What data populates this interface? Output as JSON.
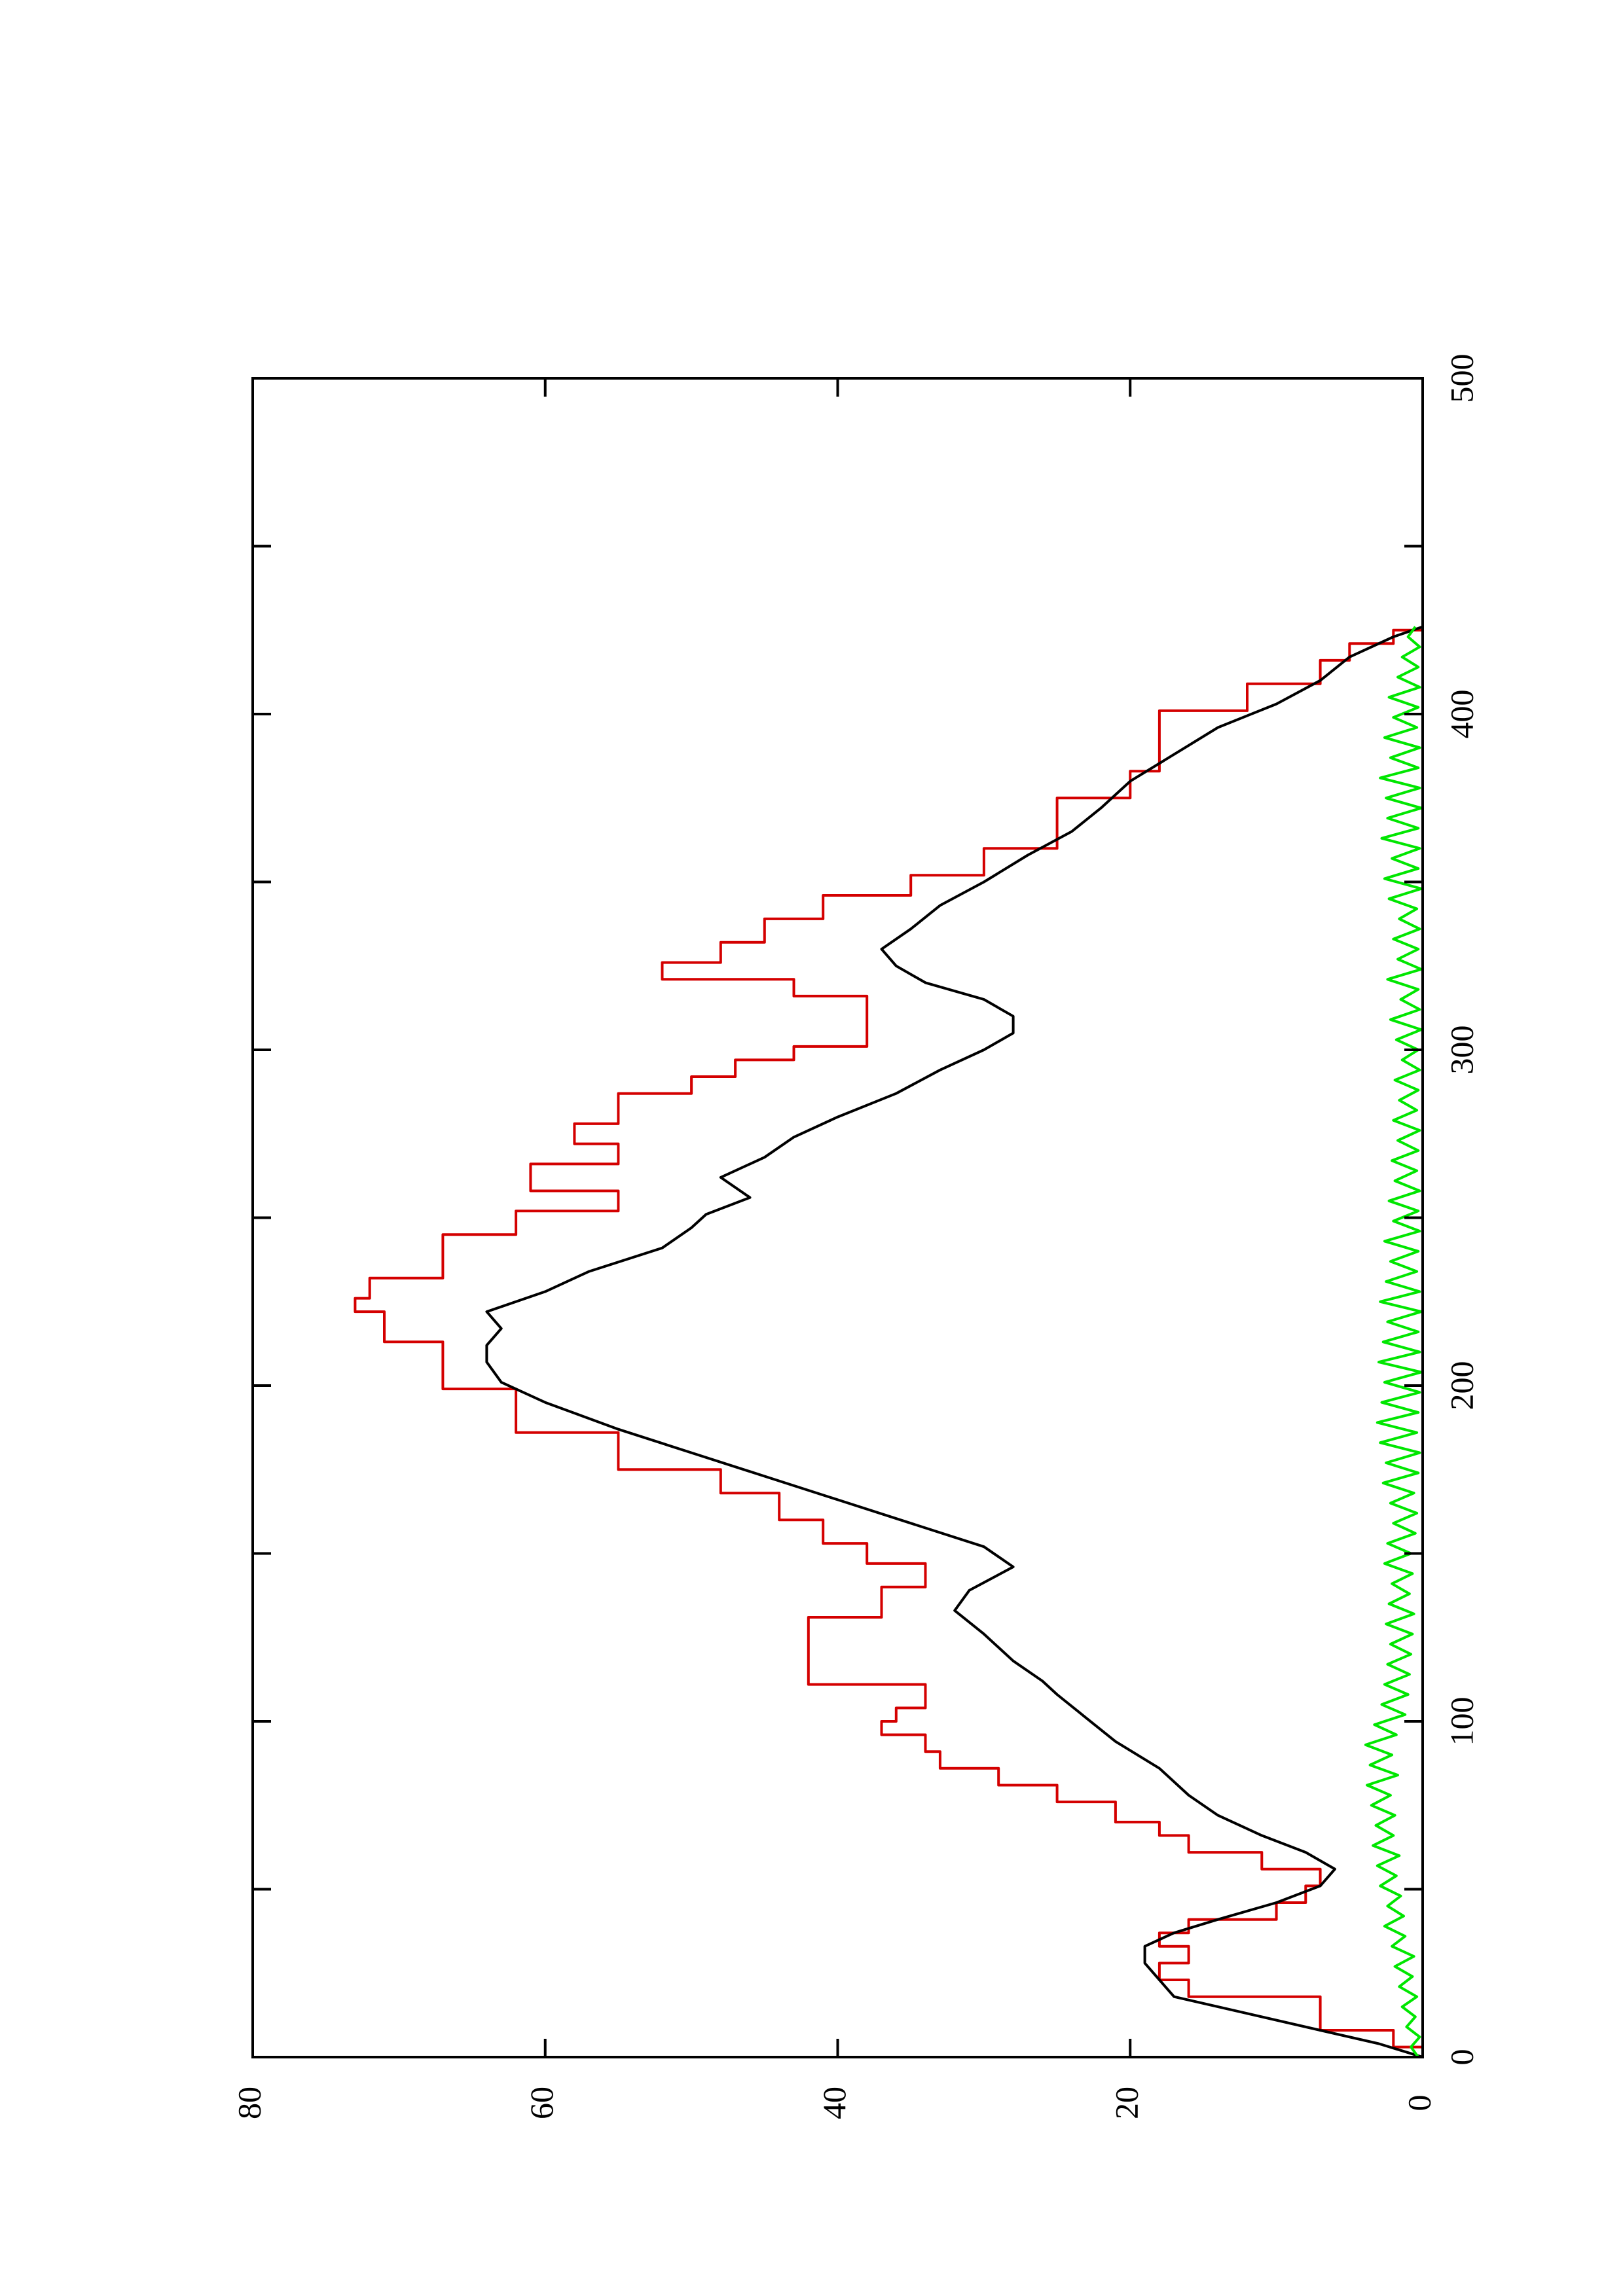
{
  "chart_data": {
    "type": "line",
    "orientation": "rotated-90-ccw",
    "title": "",
    "xlabel": "",
    "ylabel": "",
    "xlim": [
      0,
      500
    ],
    "ylim": [
      0,
      80
    ],
    "x_ticks": [
      0,
      100,
      200,
      300,
      400,
      500
    ],
    "x_tick_labels": [
      "0",
      "100",
      "200",
      "300",
      "400",
      "500"
    ],
    "x_minor_ticks": [
      50,
      150,
      250,
      350,
      450
    ],
    "y_ticks": [
      0,
      20,
      40,
      60,
      80
    ],
    "y_tick_labels": [
      "0",
      "20",
      "40",
      "60",
      "80"
    ],
    "grid": false,
    "legend": "none",
    "series": [
      {
        "color": "#d40000",
        "style": "step",
        "x": [
          0,
          3,
          8,
          18,
          23,
          28,
          33,
          37,
          41,
          46,
          51,
          56,
          61,
          66,
          70,
          76,
          81,
          86,
          91,
          96,
          100,
          104,
          111,
          122,
          131,
          140,
          147,
          153,
          160,
          168,
          175,
          186,
          199,
          213,
          222,
          226,
          232,
          245,
          252,
          258,
          266,
          272,
          278,
          283,
          287,
          292,
          297,
          301,
          307,
          316,
          321,
          326,
          332,
          339,
          346,
          352,
          360,
          367,
          375,
          383,
          391,
          401,
          409,
          416,
          421,
          425
        ],
        "y": [
          0,
          2,
          7,
          16,
          18,
          16,
          18,
          16,
          10,
          8,
          7,
          11,
          16,
          18,
          21,
          25,
          29,
          33,
          34,
          37,
          36,
          34,
          42,
          42,
          37,
          34,
          38,
          41,
          44,
          48,
          55,
          62,
          67,
          71,
          73,
          72,
          67,
          62,
          55,
          61,
          55,
          58,
          55,
          55,
          50,
          47,
          43,
          38,
          38,
          43,
          52,
          48,
          45,
          41,
          35,
          30,
          25,
          25,
          20,
          18,
          18,
          12,
          7,
          5,
          2,
          0
        ]
      },
      {
        "color": "#000000",
        "style": "line",
        "x": [
          0,
          4,
          8,
          13,
          18,
          23,
          28,
          33,
          37,
          41,
          46,
          51,
          56,
          61,
          66,
          72,
          78,
          86,
          94,
          101,
          108,
          112,
          118,
          126,
          133,
          139,
          146,
          152,
          159,
          166,
          173,
          180,
          187,
          195,
          201,
          207,
          212,
          217,
          222,
          228,
          234,
          241,
          247,
          251,
          256,
          262,
          268,
          274,
          280,
          287,
          294,
          300,
          305,
          310,
          315,
          320,
          325,
          330,
          336,
          343,
          350,
          358,
          365,
          372,
          380,
          388,
          396,
          403,
          410,
          417,
          423,
          426
        ],
        "y": [
          0,
          3,
          7,
          12,
          17,
          18,
          19,
          19,
          17,
          14,
          10,
          7,
          6,
          8,
          11,
          14,
          16,
          18,
          21,
          23,
          25,
          26,
          28,
          30,
          32,
          31,
          28,
          30,
          35,
          40,
          45,
          50,
          55,
          60,
          63,
          64,
          64,
          63,
          64,
          60,
          57,
          52,
          50,
          49,
          46,
          48,
          45,
          43,
          40,
          36,
          33,
          30,
          28,
          28,
          30,
          34,
          36,
          37,
          35,
          33,
          30,
          27,
          24,
          22,
          20,
          17,
          14,
          10,
          7,
          5,
          2,
          0
        ]
      },
      {
        "color": "#00e600",
        "style": "noise",
        "x": [
          0,
          3,
          6,
          9,
          12,
          15,
          18,
          21,
          24,
          27,
          30,
          33,
          36,
          39,
          42,
          45,
          48,
          51,
          54,
          57,
          60,
          63,
          66,
          69,
          72,
          75,
          78,
          81,
          84,
          87,
          90,
          93,
          96,
          99,
          102,
          105,
          108,
          111,
          114,
          117,
          120,
          123,
          126,
          129,
          132,
          135,
          138,
          141,
          144,
          147,
          150,
          153,
          156,
          159,
          162,
          165,
          168,
          171,
          174,
          177,
          180,
          183,
          186,
          189,
          192,
          195,
          198,
          201,
          204,
          207,
          210,
          213,
          216,
          219,
          222,
          225,
          228,
          231,
          234,
          237,
          240,
          243,
          246,
          249,
          252,
          255,
          258,
          261,
          264,
          267,
          270,
          273,
          276,
          279,
          282,
          285,
          288,
          291,
          294,
          297,
          300,
          303,
          306,
          309,
          312,
          315,
          318,
          321,
          324,
          327,
          330,
          333,
          336,
          339,
          342,
          345,
          348,
          351,
          354,
          357,
          360,
          363,
          366,
          369,
          372,
          375,
          378,
          381,
          384,
          387,
          390,
          393,
          396,
          399,
          402,
          405,
          408,
          411,
          414,
          417,
          420,
          423,
          426
        ],
        "y": [
          0.3,
          0.8,
          0.2,
          1.1,
          0.5,
          1.4,
          0.4,
          1.6,
          0.7,
          1.9,
          0.6,
          2.1,
          1.2,
          2.6,
          1.3,
          2.4,
          1.5,
          2.9,
          1.8,
          3.1,
          1.6,
          3.4,
          2.0,
          3.2,
          1.9,
          3.5,
          2.2,
          3.8,
          1.7,
          3.6,
          2.1,
          3.9,
          1.8,
          3.3,
          1.2,
          2.8,
          1.0,
          2.6,
          0.9,
          2.4,
          0.8,
          2.2,
          0.7,
          2.5,
          0.6,
          2.3,
          0.9,
          2.1,
          0.7,
          2.6,
          0.8,
          2.4,
          0.5,
          2.0,
          0.4,
          2.2,
          0.6,
          2.7,
          0.3,
          2.5,
          0.2,
          2.9,
          0.4,
          3.1,
          0.3,
          2.8,
          0.2,
          2.6,
          0.1,
          3.0,
          0.2,
          2.7,
          0.3,
          2.4,
          0.1,
          2.9,
          0.2,
          2.5,
          0.4,
          2.2,
          0.3,
          2.6,
          0.2,
          2.0,
          0.3,
          2.3,
          0.2,
          1.9,
          0.4,
          2.1,
          0.3,
          1.7,
          0.2,
          2.0,
          0.4,
          1.6,
          0.3,
          1.9,
          0.2,
          1.4,
          0.3,
          1.8,
          0.1,
          2.2,
          0.2,
          1.5,
          0.3,
          2.4,
          0.1,
          1.7,
          0.3,
          2.0,
          0.2,
          1.6,
          0.4,
          2.3,
          0.1,
          2.6,
          0.3,
          2.1,
          0.2,
          2.8,
          0.3,
          2.4,
          0.1,
          2.5,
          0.2,
          2.9,
          0.3,
          2.2,
          0.2,
          2.6,
          0.4,
          2.0,
          0.3,
          2.3,
          0.2,
          1.7,
          0.3,
          1.4,
          0.2,
          1.0,
          0.5
        ]
      }
    ]
  }
}
